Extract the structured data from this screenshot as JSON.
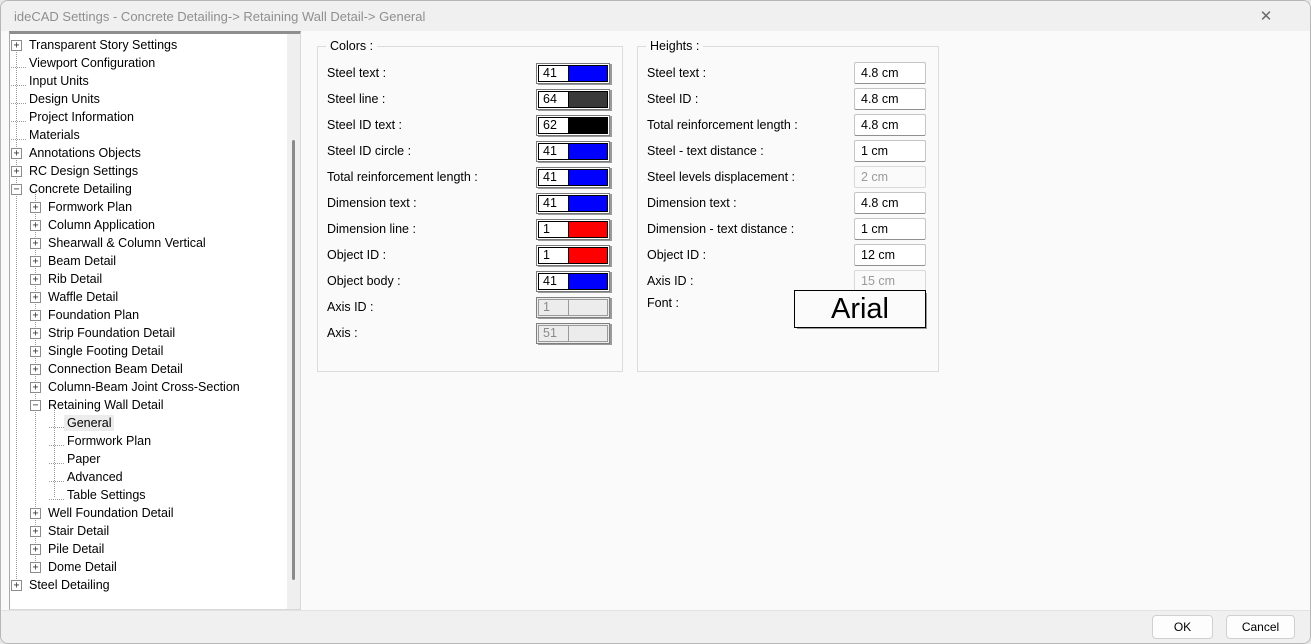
{
  "window": {
    "title": "ideCAD Settings - Concrete Detailing-> Retaining Wall Detail-> General",
    "close_icon": "✕"
  },
  "tree": {
    "items": [
      {
        "label": "Transparent Story Settings",
        "level": 0,
        "expand": "plus",
        "selected": false
      },
      {
        "label": "Viewport Configuration",
        "level": 0,
        "expand": "none",
        "selected": false
      },
      {
        "label": "Input Units",
        "level": 0,
        "expand": "none",
        "selected": false
      },
      {
        "label": "Design Units",
        "level": 0,
        "expand": "none",
        "selected": false
      },
      {
        "label": "Project Information",
        "level": 0,
        "expand": "none",
        "selected": false
      },
      {
        "label": "Materials",
        "level": 0,
        "expand": "none",
        "selected": false
      },
      {
        "label": "Annotations Objects",
        "level": 0,
        "expand": "plus",
        "selected": false
      },
      {
        "label": "RC Design Settings",
        "level": 0,
        "expand": "plus",
        "selected": false
      },
      {
        "label": "Concrete Detailing",
        "level": 0,
        "expand": "minus",
        "selected": false
      },
      {
        "label": "Formwork Plan",
        "level": 1,
        "expand": "plus",
        "selected": false
      },
      {
        "label": "Column Application",
        "level": 1,
        "expand": "plus",
        "selected": false
      },
      {
        "label": "Shearwall & Column Vertical",
        "level": 1,
        "expand": "plus",
        "selected": false
      },
      {
        "label": "Beam Detail",
        "level": 1,
        "expand": "plus",
        "selected": false
      },
      {
        "label": "Rib Detail",
        "level": 1,
        "expand": "plus",
        "selected": false
      },
      {
        "label": "Waffle Detail",
        "level": 1,
        "expand": "plus",
        "selected": false
      },
      {
        "label": "Foundation Plan",
        "level": 1,
        "expand": "plus",
        "selected": false
      },
      {
        "label": "Strip Foundation Detail",
        "level": 1,
        "expand": "plus",
        "selected": false
      },
      {
        "label": "Single Footing Detail",
        "level": 1,
        "expand": "plus",
        "selected": false
      },
      {
        "label": "Connection Beam Detail",
        "level": 1,
        "expand": "plus",
        "selected": false
      },
      {
        "label": "Column-Beam Joint Cross-Section",
        "level": 1,
        "expand": "plus",
        "selected": false
      },
      {
        "label": "Retaining Wall Detail",
        "level": 1,
        "expand": "minus",
        "selected": false
      },
      {
        "label": "General",
        "level": 2,
        "expand": "none",
        "selected": true
      },
      {
        "label": "Formwork Plan",
        "level": 2,
        "expand": "none",
        "selected": false
      },
      {
        "label": "Paper",
        "level": 2,
        "expand": "none",
        "selected": false
      },
      {
        "label": "Advanced",
        "level": 2,
        "expand": "none",
        "selected": false
      },
      {
        "label": "Table Settings",
        "level": 2,
        "expand": "none",
        "selected": false
      },
      {
        "label": "Well Foundation Detail",
        "level": 1,
        "expand": "plus",
        "selected": false
      },
      {
        "label": "Stair Detail",
        "level": 1,
        "expand": "plus",
        "selected": false
      },
      {
        "label": "Pile Detail",
        "level": 1,
        "expand": "plus",
        "selected": false
      },
      {
        "label": "Dome Detail",
        "level": 1,
        "expand": "plus",
        "selected": false
      },
      {
        "label": "Steel Detailing",
        "level": 0,
        "expand": "plus",
        "selected": false
      }
    ]
  },
  "colors": {
    "title": "Colors :",
    "rows": [
      {
        "label": "Steel text :",
        "value": "41",
        "color": "#0000ff",
        "disabled": false
      },
      {
        "label": "Steel line :",
        "value": "64",
        "color": "#3a3a3a",
        "disabled": false
      },
      {
        "label": "Steel ID text :",
        "value": "62",
        "color": "#000000",
        "disabled": false
      },
      {
        "label": "Steel ID circle :",
        "value": "41",
        "color": "#0000ff",
        "disabled": false
      },
      {
        "label": "Total reinforcement length :",
        "value": "41",
        "color": "#0000ff",
        "disabled": false
      },
      {
        "label": "Dimension text :",
        "value": "41",
        "color": "#0000ff",
        "disabled": false
      },
      {
        "label": "Dimension line :",
        "value": "1",
        "color": "#ff0000",
        "disabled": false
      },
      {
        "label": "Object ID :",
        "value": "1",
        "color": "#ff0000",
        "disabled": false
      },
      {
        "label": "Object body :",
        "value": "41",
        "color": "#0000ff",
        "disabled": false
      },
      {
        "label": "Axis ID :",
        "value": "1",
        "color": "#ececec",
        "disabled": true
      },
      {
        "label": "Axis :",
        "value": "51",
        "color": "#ececec",
        "disabled": true
      }
    ]
  },
  "heights": {
    "title": "Heights :",
    "rows": [
      {
        "label": "Steel text :",
        "value": "4.8 cm",
        "disabled": false
      },
      {
        "label": "Steel ID :",
        "value": "4.8 cm",
        "disabled": false
      },
      {
        "label": "Total reinforcement length :",
        "value": "4.8 cm",
        "disabled": false
      },
      {
        "label": "Steel - text distance :",
        "value": "1 cm",
        "disabled": false
      },
      {
        "label": "Steel levels displacement :",
        "value": "2 cm",
        "disabled": true
      },
      {
        "label": "Dimension text :",
        "value": "4.8 cm",
        "disabled": false
      },
      {
        "label": "Dimension - text distance :",
        "value": "1 cm",
        "disabled": false
      },
      {
        "label": "Object ID :",
        "value": "12 cm",
        "disabled": false
      },
      {
        "label": "Axis ID :",
        "value": "15 cm",
        "disabled": true
      }
    ],
    "font_label": "Font :",
    "font_value": "Arial"
  },
  "footer": {
    "ok": "OK",
    "cancel": "Cancel"
  }
}
